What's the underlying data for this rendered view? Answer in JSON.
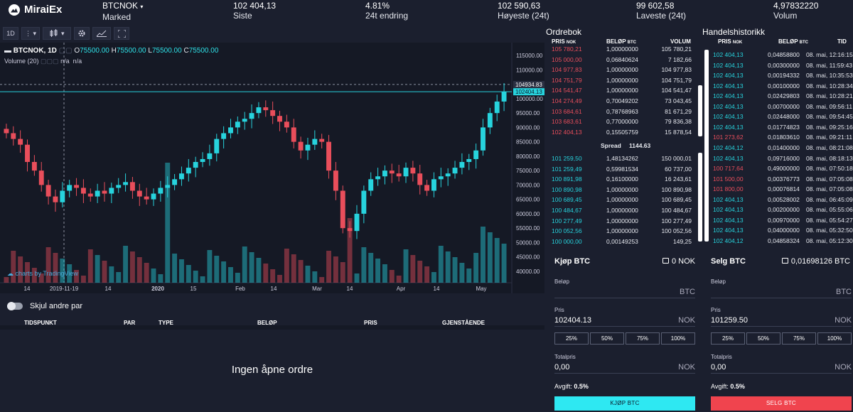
{
  "header": {
    "brand": "MiraiEx",
    "market": {
      "value": "BTCNOK",
      "label": "Marked"
    },
    "stats": [
      {
        "value": "102 404,13",
        "label": "Siste"
      },
      {
        "value": "4.81%",
        "label": "24t endring"
      },
      {
        "value": "102 590,63",
        "label": "Høyeste (24t)"
      },
      {
        "value": "99 602,58",
        "label": "Laveste (24t)"
      },
      {
        "value": "4,97832220",
        "label": "Volum"
      }
    ]
  },
  "toolbar": {
    "interval": "1D",
    "more": "⋮",
    "candle": "candle-icon",
    "settings": "gear-icon",
    "indicators": "indicators-icon",
    "fullscreen": "fullscreen-icon"
  },
  "chart_data": {
    "type": "line",
    "title": "BTCNOK, 1D",
    "legend": {
      "symbol": "BTCNOK, 1D",
      "o_label": "O",
      "o": "75500.00",
      "h_label": "H",
      "h": "75500.00",
      "l_label": "L",
      "l": "75500.00",
      "c_label": "C",
      "c": "75500.00",
      "volume_label": "Volume (20)",
      "na1": "n/a",
      "na2": "n/a"
    },
    "watermark": "charts by TradingView",
    "y_ticks": [
      "115000.00",
      "110000.00",
      "105000.00",
      "100000.00",
      "95000.00",
      "90000.00",
      "85000.00",
      "80000.00",
      "75000.00",
      "70000.00",
      "65000.00",
      "60000.00",
      "55000.00",
      "50000.00",
      "45000.00",
      "40000.00"
    ],
    "ylim": [
      38000,
      118000
    ],
    "x_ticks": [
      "14",
      "2019-11-19",
      "14",
      "2020",
      "15",
      "Feb",
      "14",
      "Mar",
      "14",
      "Apr",
      "14",
      "May"
    ],
    "price_tags": [
      "104934.83",
      "102404.13"
    ],
    "close_series": [
      88000,
      86000,
      84000,
      78000,
      75000,
      70000,
      66000,
      64000,
      68000,
      70000,
      69000,
      67000,
      66000,
      68000,
      67000,
      69000,
      70000,
      71000,
      68000,
      66000,
      65000,
      67000,
      69000,
      70000,
      72000,
      74000,
      76000,
      78000,
      79000,
      81000,
      86000,
      88000,
      90000,
      92000,
      93000,
      95000,
      97000,
      96000,
      94000,
      92000,
      90000,
      85000,
      82000,
      84000,
      86000,
      85000,
      75000,
      68000,
      55000,
      54000,
      60000,
      68000,
      72000,
      73000,
      75000,
      74000,
      73000,
      76000,
      74000,
      70000,
      68000,
      72000,
      73000,
      74000,
      76000,
      78000,
      79000,
      82000,
      90000,
      95000,
      99000,
      102404
    ]
  },
  "orderbook": {
    "title": "Ordrebok",
    "headers": {
      "price": "PRIS",
      "price_unit": "NOK",
      "amount": "BELØP",
      "amount_unit": "BTC",
      "volume": "VOLUM"
    },
    "asks": [
      [
        "105 780,21",
        "1,00000000",
        "105 780,21"
      ],
      [
        "105 000,00",
        "0,06840624",
        "7 182,66"
      ],
      [
        "104 977,83",
        "1,00000000",
        "104 977,83"
      ],
      [
        "104 751,79",
        "1,00000000",
        "104 751,79"
      ],
      [
        "104 541,47",
        "1,00000000",
        "104 541,47"
      ],
      [
        "104 274,49",
        "0,70049202",
        "73 043,45"
      ],
      [
        "103 684,61",
        "0,78768963",
        "81 671,29"
      ],
      [
        "103 683,61",
        "0,77000000",
        "79 836,38"
      ],
      [
        "102 404,13",
        "0,15505759",
        "15 878,54"
      ]
    ],
    "spread_label": "Spread",
    "spread_value": "1144.63",
    "bids": [
      [
        "101 259,50",
        "1,48134262",
        "150 000,01"
      ],
      [
        "101 259,49",
        "0,59981534",
        "60 737,00"
      ],
      [
        "100 891,98",
        "0,16100000",
        "16 243,61"
      ],
      [
        "100 890,98",
        "1,00000000",
        "100 890,98"
      ],
      [
        "100 689,45",
        "1,00000000",
        "100 689,45"
      ],
      [
        "100 484,67",
        "1,00000000",
        "100 484,67"
      ],
      [
        "100 277,49",
        "1,00000000",
        "100 277,49"
      ],
      [
        "100 052,56",
        "1,00000000",
        "100 052,56"
      ],
      [
        "100 000,00",
        "0,00149253",
        "149,25"
      ]
    ]
  },
  "trades": {
    "title": "Handelshistorikk",
    "headers": {
      "price": "PRIS",
      "price_unit": "NOK",
      "amount": "BELØP",
      "amount_unit": "BTC",
      "time": "TID"
    },
    "rows": [
      [
        "102 404,13",
        "0,04858800",
        "08. mai, 12:16:15",
        "c"
      ],
      [
        "102 404,13",
        "0,00300000",
        "08. mai, 11:59:43",
        "c"
      ],
      [
        "102 404,13",
        "0,00194332",
        "08. mai, 10:35:53",
        "c"
      ],
      [
        "102 404,13",
        "0,00100000",
        "08. mai, 10:28:34",
        "c"
      ],
      [
        "102 404,13",
        "0,02429803",
        "08. mai, 10:28:21",
        "c"
      ],
      [
        "102 404,13",
        "0,00700000",
        "08. mai, 09:56:11",
        "c"
      ],
      [
        "102 404,13",
        "0,02448000",
        "08. mai, 09:54:45",
        "c"
      ],
      [
        "102 404,13",
        "0,01774823",
        "08. mai, 09:25:16",
        "c"
      ],
      [
        "101 273,62",
        "0,01803610",
        "08. mai, 09:21:11",
        "r"
      ],
      [
        "102 404,12",
        "0,01400000",
        "08. mai, 08:21:08",
        "c"
      ],
      [
        "102 404,13",
        "0,09716000",
        "08. mai, 08:18:13",
        "c"
      ],
      [
        "100 717,64",
        "0,49000000",
        "08. mai, 07:50:18",
        "r"
      ],
      [
        "101 500,00",
        "0,00376773",
        "08. mai, 07:05:08",
        "r"
      ],
      [
        "101 800,00",
        "0,00076814",
        "08. mai, 07:05:08",
        "r"
      ],
      [
        "102 404,13",
        "0,00528002",
        "08. mai, 06:45:09",
        "c"
      ],
      [
        "102 404,13",
        "0,00200000",
        "08. mai, 05:55:06",
        "c"
      ],
      [
        "102 404,13",
        "0,00970000",
        "08. mai, 05:54:27",
        "c"
      ],
      [
        "102 404,13",
        "0,04000000",
        "08. mai, 05:32:50",
        "c"
      ],
      [
        "102 404,12",
        "0,04858324",
        "08. mai, 05:12:30",
        "c"
      ]
    ]
  },
  "buy": {
    "title": "Kjøp BTC",
    "balance": "0 NOK",
    "amount_label": "Beløp",
    "amount_value": "",
    "amount_unit": "BTC",
    "price_label": "Pris",
    "price_value": "102404.13",
    "price_unit": "NOK",
    "pcts": [
      "25%",
      "50%",
      "75%",
      "100%"
    ],
    "total_label": "Totalpris",
    "total_value": "0,00",
    "total_unit": "NOK",
    "fee_label": "Avgift:",
    "fee_value": "0.5%",
    "button": "KJØP BTC",
    "color": "#2ee8f2"
  },
  "sell": {
    "title": "Selg BTC",
    "balance": "0,01698126 BTC",
    "amount_label": "Beløp",
    "amount_value": "",
    "amount_unit": "BTC",
    "price_label": "Pris",
    "price_value": "101259.50",
    "price_unit": "NOK",
    "pcts": [
      "25%",
      "50%",
      "75%",
      "100%"
    ],
    "total_label": "Totalpris",
    "total_value": "0,00",
    "total_unit": "NOK",
    "fee_label": "Avgift:",
    "fee_value": "0.5%",
    "button": "SELG BTC",
    "color": "#f0444e"
  },
  "orders": {
    "toggle_label": "Skjul andre par",
    "headers": [
      "TIDSPUNKT",
      "PAR",
      "TYPE",
      "BELØP",
      "PRIS",
      "GJENSTÅENDE"
    ],
    "empty": "Ingen åpne ordre"
  }
}
